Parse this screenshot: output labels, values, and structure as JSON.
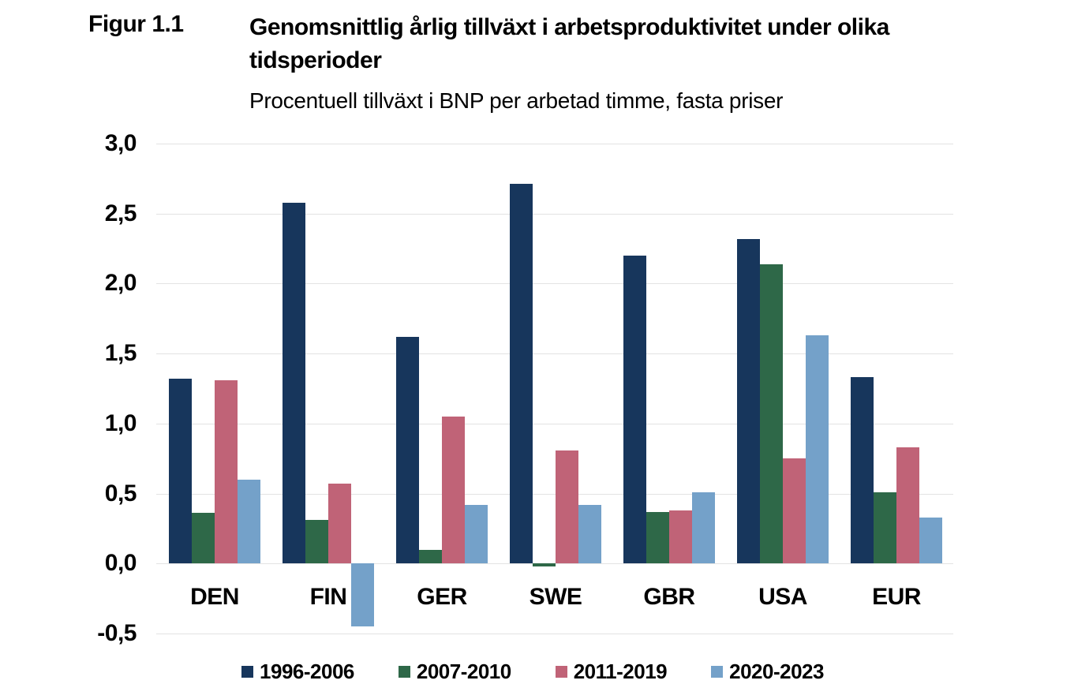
{
  "figure": {
    "label": "Figur 1.1",
    "title": "Genomsnittlig årlig tillväxt i arbetsproduktivitet under olika tidsperioder",
    "subtitle": "Procentuell tillväxt i BNP per arbetad timme, fasta priser"
  },
  "chart_data": {
    "type": "bar",
    "title": "Genomsnittlig årlig tillväxt i arbetsproduktivitet under olika tidsperioder",
    "subtitle": "Procentuell tillväxt i BNP per arbetad timme, fasta priser",
    "categories": [
      "DEN",
      "FIN",
      "GER",
      "SWE",
      "GBR",
      "USA",
      "EUR"
    ],
    "series": [
      {
        "name": "1996-2006",
        "color": "#17365c",
        "values": [
          1.32,
          2.58,
          1.62,
          2.71,
          2.2,
          2.32,
          1.33
        ]
      },
      {
        "name": "2007-2010",
        "color": "#2e6848",
        "values": [
          0.36,
          0.31,
          0.1,
          -0.02,
          0.37,
          2.14,
          0.51
        ]
      },
      {
        "name": "2011-2019",
        "color": "#c06377",
        "values": [
          1.31,
          0.57,
          1.05,
          0.81,
          0.38,
          0.75,
          0.83
        ]
      },
      {
        "name": "2020-2023",
        "color": "#74a1c9",
        "values": [
          0.6,
          -0.45,
          0.42,
          0.42,
          0.51,
          1.63,
          0.33
        ]
      }
    ],
    "xlabel": "",
    "ylabel": "",
    "ylim": [
      -0.5,
      3.0
    ],
    "ytick_step": 0.5,
    "ytick_labels": [
      "3,0",
      "2,5",
      "2,0",
      "1,5",
      "1,0",
      "0,5",
      "0,0",
      "-0,5"
    ],
    "decimal_separator": ",",
    "grid": true,
    "legend_position": "bottom",
    "gridline_color": "#e3e3e3"
  }
}
